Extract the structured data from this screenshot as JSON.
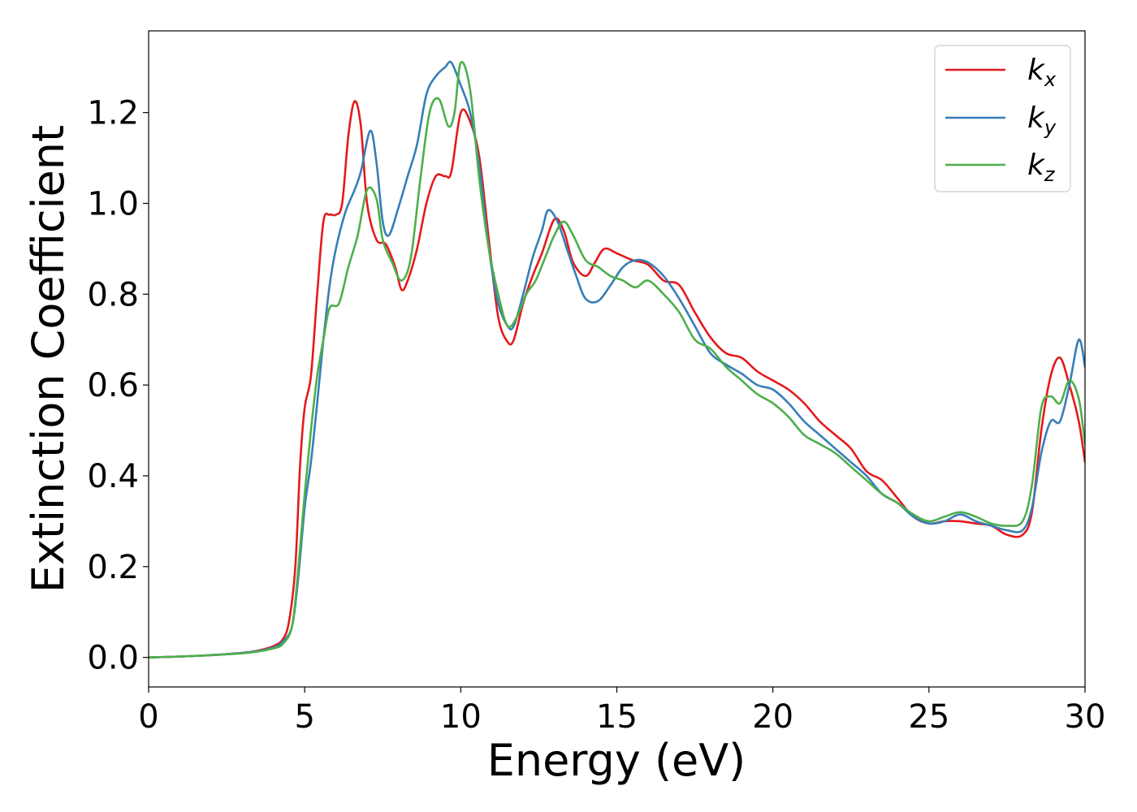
{
  "chart_data": {
    "type": "line",
    "xlabel": "Energy (eV)",
    "ylabel": "Extinction Coefficient",
    "xlim": [
      0,
      30
    ],
    "ylim": [
      -0.065,
      1.38
    ],
    "xticks": [
      0,
      5,
      10,
      15,
      20,
      25,
      30
    ],
    "yticks": [
      0.0,
      0.2,
      0.4,
      0.6,
      0.8,
      1.0,
      1.2
    ],
    "xtick_labels": [
      "0",
      "5",
      "10",
      "15",
      "20",
      "25",
      "30"
    ],
    "ytick_labels": [
      "0.0",
      "0.2",
      "0.4",
      "0.6",
      "0.8",
      "1.0",
      "1.2"
    ],
    "grid": false,
    "legend_position": "top-right",
    "series": [
      {
        "name": "k",
        "subscript": "x",
        "color": "#e41a1c",
        "points": [
          [
            0,
            0
          ],
          [
            1,
            0.002
          ],
          [
            2,
            0.005
          ],
          [
            3,
            0.01
          ],
          [
            3.5,
            0.015
          ],
          [
            4,
            0.025
          ],
          [
            4.3,
            0.04
          ],
          [
            4.5,
            0.08
          ],
          [
            4.7,
            0.2
          ],
          [
            4.85,
            0.42
          ],
          [
            5,
            0.55
          ],
          [
            5.2,
            0.62
          ],
          [
            5.4,
            0.8
          ],
          [
            5.6,
            0.96
          ],
          [
            5.8,
            0.975
          ],
          [
            6,
            0.975
          ],
          [
            6.2,
            1.0
          ],
          [
            6.4,
            1.15
          ],
          [
            6.6,
            1.225
          ],
          [
            6.8,
            1.17
          ],
          [
            7,
            1.0
          ],
          [
            7.3,
            0.92
          ],
          [
            7.6,
            0.91
          ],
          [
            7.9,
            0.86
          ],
          [
            8.1,
            0.81
          ],
          [
            8.3,
            0.83
          ],
          [
            8.6,
            0.9
          ],
          [
            8.9,
            1.0
          ],
          [
            9.2,
            1.06
          ],
          [
            9.5,
            1.06
          ],
          [
            9.7,
            1.07
          ],
          [
            10,
            1.2
          ],
          [
            10.3,
            1.18
          ],
          [
            10.6,
            1.1
          ],
          [
            10.9,
            0.92
          ],
          [
            11.2,
            0.75
          ],
          [
            11.5,
            0.695
          ],
          [
            11.7,
            0.7
          ],
          [
            12,
            0.78
          ],
          [
            12.3,
            0.84
          ],
          [
            12.6,
            0.89
          ],
          [
            13,
            0.965
          ],
          [
            13.3,
            0.94
          ],
          [
            13.6,
            0.87
          ],
          [
            14,
            0.84
          ],
          [
            14.3,
            0.87
          ],
          [
            14.6,
            0.9
          ],
          [
            15,
            0.89
          ],
          [
            15.5,
            0.875
          ],
          [
            16,
            0.865
          ],
          [
            16.5,
            0.83
          ],
          [
            17,
            0.82
          ],
          [
            17.5,
            0.76
          ],
          [
            18,
            0.705
          ],
          [
            18.5,
            0.67
          ],
          [
            19,
            0.66
          ],
          [
            19.5,
            0.63
          ],
          [
            20,
            0.61
          ],
          [
            20.5,
            0.59
          ],
          [
            21,
            0.56
          ],
          [
            21.5,
            0.52
          ],
          [
            22,
            0.49
          ],
          [
            22.5,
            0.46
          ],
          [
            23,
            0.41
          ],
          [
            23.5,
            0.39
          ],
          [
            24,
            0.35
          ],
          [
            24.5,
            0.31
          ],
          [
            25,
            0.295
          ],
          [
            25.5,
            0.3
          ],
          [
            26,
            0.3
          ],
          [
            26.5,
            0.295
          ],
          [
            27,
            0.29
          ],
          [
            27.5,
            0.27
          ],
          [
            28,
            0.27
          ],
          [
            28.3,
            0.32
          ],
          [
            28.6,
            0.5
          ],
          [
            28.9,
            0.62
          ],
          [
            29.2,
            0.66
          ],
          [
            29.5,
            0.6
          ],
          [
            29.8,
            0.52
          ],
          [
            30,
            0.43
          ]
        ]
      },
      {
        "name": "k",
        "subscript": "y",
        "color": "#377eb8",
        "points": [
          [
            0,
            0
          ],
          [
            1,
            0.002
          ],
          [
            2,
            0.005
          ],
          [
            3,
            0.01
          ],
          [
            3.5,
            0.014
          ],
          [
            4,
            0.022
          ],
          [
            4.3,
            0.035
          ],
          [
            4.6,
            0.07
          ],
          [
            4.8,
            0.18
          ],
          [
            5,
            0.33
          ],
          [
            5.2,
            0.43
          ],
          [
            5.4,
            0.56
          ],
          [
            5.6,
            0.7
          ],
          [
            5.8,
            0.82
          ],
          [
            6,
            0.9
          ],
          [
            6.3,
            0.98
          ],
          [
            6.6,
            1.03
          ],
          [
            6.8,
            1.07
          ],
          [
            7.1,
            1.16
          ],
          [
            7.3,
            1.09
          ],
          [
            7.5,
            0.96
          ],
          [
            7.7,
            0.93
          ],
          [
            8,
            0.99
          ],
          [
            8.3,
            1.06
          ],
          [
            8.6,
            1.13
          ],
          [
            8.9,
            1.24
          ],
          [
            9.2,
            1.28
          ],
          [
            9.5,
            1.3
          ],
          [
            9.7,
            1.31
          ],
          [
            10,
            1.26
          ],
          [
            10.3,
            1.2
          ],
          [
            10.6,
            1.08
          ],
          [
            10.9,
            0.9
          ],
          [
            11.2,
            0.78
          ],
          [
            11.5,
            0.73
          ],
          [
            11.7,
            0.73
          ],
          [
            12,
            0.8
          ],
          [
            12.3,
            0.88
          ],
          [
            12.6,
            0.94
          ],
          [
            12.8,
            0.985
          ],
          [
            13.1,
            0.96
          ],
          [
            13.4,
            0.9
          ],
          [
            13.7,
            0.84
          ],
          [
            14,
            0.79
          ],
          [
            14.4,
            0.785
          ],
          [
            14.8,
            0.82
          ],
          [
            15.2,
            0.86
          ],
          [
            15.6,
            0.875
          ],
          [
            16,
            0.87
          ],
          [
            16.5,
            0.84
          ],
          [
            17,
            0.79
          ],
          [
            17.5,
            0.73
          ],
          [
            18,
            0.67
          ],
          [
            18.5,
            0.645
          ],
          [
            19,
            0.625
          ],
          [
            19.5,
            0.6
          ],
          [
            20,
            0.59
          ],
          [
            20.5,
            0.56
          ],
          [
            21,
            0.52
          ],
          [
            21.5,
            0.49
          ],
          [
            22,
            0.46
          ],
          [
            22.5,
            0.43
          ],
          [
            23,
            0.4
          ],
          [
            23.5,
            0.36
          ],
          [
            24,
            0.34
          ],
          [
            24.5,
            0.31
          ],
          [
            25,
            0.295
          ],
          [
            25.5,
            0.3
          ],
          [
            26,
            0.315
          ],
          [
            26.5,
            0.3
          ],
          [
            27,
            0.29
          ],
          [
            27.5,
            0.28
          ],
          [
            28,
            0.28
          ],
          [
            28.3,
            0.33
          ],
          [
            28.6,
            0.45
          ],
          [
            28.9,
            0.52
          ],
          [
            29.2,
            0.52
          ],
          [
            29.5,
            0.6
          ],
          [
            29.8,
            0.7
          ],
          [
            30,
            0.64
          ]
        ]
      },
      {
        "name": "k",
        "subscript": "z",
        "color": "#4daf4a",
        "points": [
          [
            0,
            0
          ],
          [
            1,
            0.002
          ],
          [
            2,
            0.005
          ],
          [
            3,
            0.009
          ],
          [
            3.5,
            0.013
          ],
          [
            4,
            0.02
          ],
          [
            4.3,
            0.03
          ],
          [
            4.6,
            0.07
          ],
          [
            4.8,
            0.2
          ],
          [
            5,
            0.36
          ],
          [
            5.2,
            0.5
          ],
          [
            5.4,
            0.62
          ],
          [
            5.6,
            0.7
          ],
          [
            5.8,
            0.77
          ],
          [
            6.1,
            0.78
          ],
          [
            6.4,
            0.86
          ],
          [
            6.7,
            0.93
          ],
          [
            7,
            1.03
          ],
          [
            7.3,
            1.01
          ],
          [
            7.5,
            0.92
          ],
          [
            7.8,
            0.87
          ],
          [
            8.1,
            0.83
          ],
          [
            8.4,
            0.88
          ],
          [
            8.7,
            1.05
          ],
          [
            9,
            1.2
          ],
          [
            9.3,
            1.23
          ],
          [
            9.6,
            1.17
          ],
          [
            9.8,
            1.2
          ],
          [
            10,
            1.31
          ],
          [
            10.3,
            1.25
          ],
          [
            10.6,
            1.05
          ],
          [
            10.9,
            0.9
          ],
          [
            11.2,
            0.8
          ],
          [
            11.5,
            0.73
          ],
          [
            11.8,
            0.75
          ],
          [
            12.1,
            0.8
          ],
          [
            12.4,
            0.83
          ],
          [
            12.7,
            0.88
          ],
          [
            13,
            0.93
          ],
          [
            13.3,
            0.96
          ],
          [
            13.6,
            0.93
          ],
          [
            14,
            0.875
          ],
          [
            14.4,
            0.86
          ],
          [
            14.8,
            0.84
          ],
          [
            15.2,
            0.83
          ],
          [
            15.6,
            0.815
          ],
          [
            16,
            0.83
          ],
          [
            16.5,
            0.8
          ],
          [
            17,
            0.76
          ],
          [
            17.5,
            0.7
          ],
          [
            18,
            0.68
          ],
          [
            18.5,
            0.64
          ],
          [
            19,
            0.61
          ],
          [
            19.5,
            0.58
          ],
          [
            20,
            0.56
          ],
          [
            20.5,
            0.53
          ],
          [
            21,
            0.49
          ],
          [
            21.5,
            0.47
          ],
          [
            22,
            0.45
          ],
          [
            22.5,
            0.42
          ],
          [
            23,
            0.39
          ],
          [
            23.5,
            0.36
          ],
          [
            24,
            0.34
          ],
          [
            24.5,
            0.315
          ],
          [
            25,
            0.3
          ],
          [
            25.5,
            0.31
          ],
          [
            26,
            0.32
          ],
          [
            26.5,
            0.31
          ],
          [
            27,
            0.295
          ],
          [
            27.5,
            0.29
          ],
          [
            28,
            0.3
          ],
          [
            28.3,
            0.38
          ],
          [
            28.6,
            0.55
          ],
          [
            28.9,
            0.575
          ],
          [
            29.2,
            0.56
          ],
          [
            29.5,
            0.61
          ],
          [
            29.8,
            0.57
          ],
          [
            30,
            0.47
          ]
        ]
      }
    ]
  }
}
